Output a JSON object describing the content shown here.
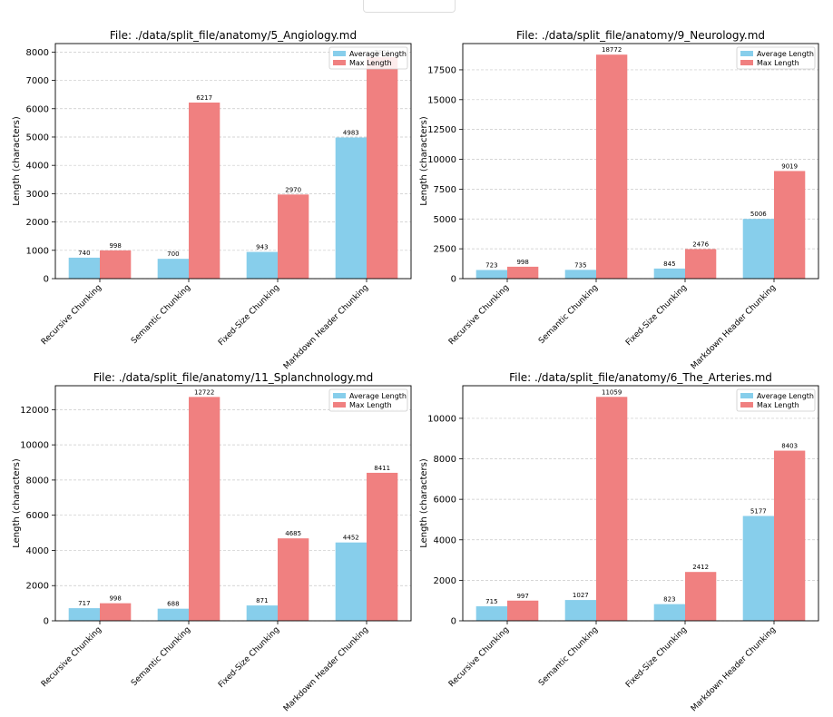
{
  "colors": {
    "average": "#87ceeb",
    "max": "#f08080",
    "grid": "#c8c8c8"
  },
  "chart_data": [
    {
      "type": "bar",
      "title": "File: ./data/split_file/anatomy/5_Angiology.md",
      "ylabel": "Length (characters)",
      "categories": [
        "Recursive Chunking",
        "Semantic Chunking",
        "Fixed-Size Chunking",
        "Markdown Header Chunking"
      ],
      "series": [
        {
          "name": "Average Length",
          "values": [
            740,
            700,
            943,
            4983
          ]
        },
        {
          "name": "Max Length",
          "values": [
            998,
            6217,
            2970,
            7821
          ]
        }
      ],
      "value_labels": [
        [
          "740",
          "700",
          "943",
          "4983"
        ],
        [
          "998",
          "6217",
          "2970",
          "7821"
        ]
      ],
      "ylim": [
        0,
        8300
      ],
      "yticks": [
        0,
        1000,
        2000,
        3000,
        4000,
        5000,
        6000,
        7000,
        8000
      ],
      "ytick_labels": [
        "0",
        "1000",
        "2000",
        "3000",
        "4000",
        "5000",
        "6000",
        "7000",
        "8000"
      ],
      "grid": true,
      "legend_position": "top-right"
    },
    {
      "type": "bar",
      "title": "File: ./data/split_file/anatomy/9_Neurology.md",
      "ylabel": "Length (characters)",
      "categories": [
        "Recursive Chunking",
        "Semantic Chunking",
        "Fixed-Size Chunking",
        "Markdown Header Chunking"
      ],
      "series": [
        {
          "name": "Average Length",
          "values": [
            723,
            735,
            845,
            5006
          ]
        },
        {
          "name": "Max Length",
          "values": [
            998,
            18772,
            2476,
            9019
          ]
        }
      ],
      "value_labels": [
        [
          "723",
          "735",
          "845",
          "5006"
        ],
        [
          "998",
          "18772",
          "2476",
          "9019"
        ]
      ],
      "ylim": [
        0,
        19700
      ],
      "yticks": [
        0,
        2500,
        5000,
        7500,
        10000,
        12500,
        15000,
        17500
      ],
      "ytick_labels": [
        "0",
        "2500",
        "5000",
        "7500",
        "10000",
        "12500",
        "15000",
        "17500"
      ],
      "grid": true,
      "legend_position": "top-right"
    },
    {
      "type": "bar",
      "title": "File: ./data/split_file/anatomy/11_Splanchnology.md",
      "ylabel": "Length (characters)",
      "categories": [
        "Recursive Chunking",
        "Semantic Chunking",
        "Fixed-Size Chunking",
        "Markdown Header Chunking"
      ],
      "series": [
        {
          "name": "Average Length",
          "values": [
            717,
            688,
            871,
            4452
          ]
        },
        {
          "name": "Max Length",
          "values": [
            998,
            12722,
            4685,
            8411
          ]
        }
      ],
      "value_labels": [
        [
          "717",
          "688",
          "871",
          "4452"
        ],
        [
          "998",
          "12722",
          "4685",
          "8411"
        ]
      ],
      "ylim": [
        0,
        13360
      ],
      "yticks": [
        0,
        2000,
        4000,
        6000,
        8000,
        10000,
        12000
      ],
      "ytick_labels": [
        "0",
        "2000",
        "4000",
        "6000",
        "8000",
        "10000",
        "12000"
      ],
      "grid": true,
      "legend_position": "top-right"
    },
    {
      "type": "bar",
      "title": "File: ./data/split_file/anatomy/6_The_Arteries.md",
      "ylabel": "Length (characters)",
      "categories": [
        "Recursive Chunking",
        "Semantic Chunking",
        "Fixed-Size Chunking",
        "Markdown Header Chunking"
      ],
      "series": [
        {
          "name": "Average Length",
          "values": [
            715,
            1027,
            823,
            5177
          ]
        },
        {
          "name": "Max Length",
          "values": [
            997,
            11059,
            2412,
            8403
          ]
        }
      ],
      "value_labels": [
        [
          "715",
          "1027",
          "823",
          "5177"
        ],
        [
          "997",
          "11059",
          "2412",
          "8403"
        ]
      ],
      "ylim": [
        0,
        11610
      ],
      "yticks": [
        0,
        2000,
        4000,
        6000,
        8000,
        10000
      ],
      "ytick_labels": [
        "0",
        "2000",
        "4000",
        "6000",
        "8000",
        "10000"
      ],
      "grid": true,
      "legend_position": "top-right"
    }
  ]
}
